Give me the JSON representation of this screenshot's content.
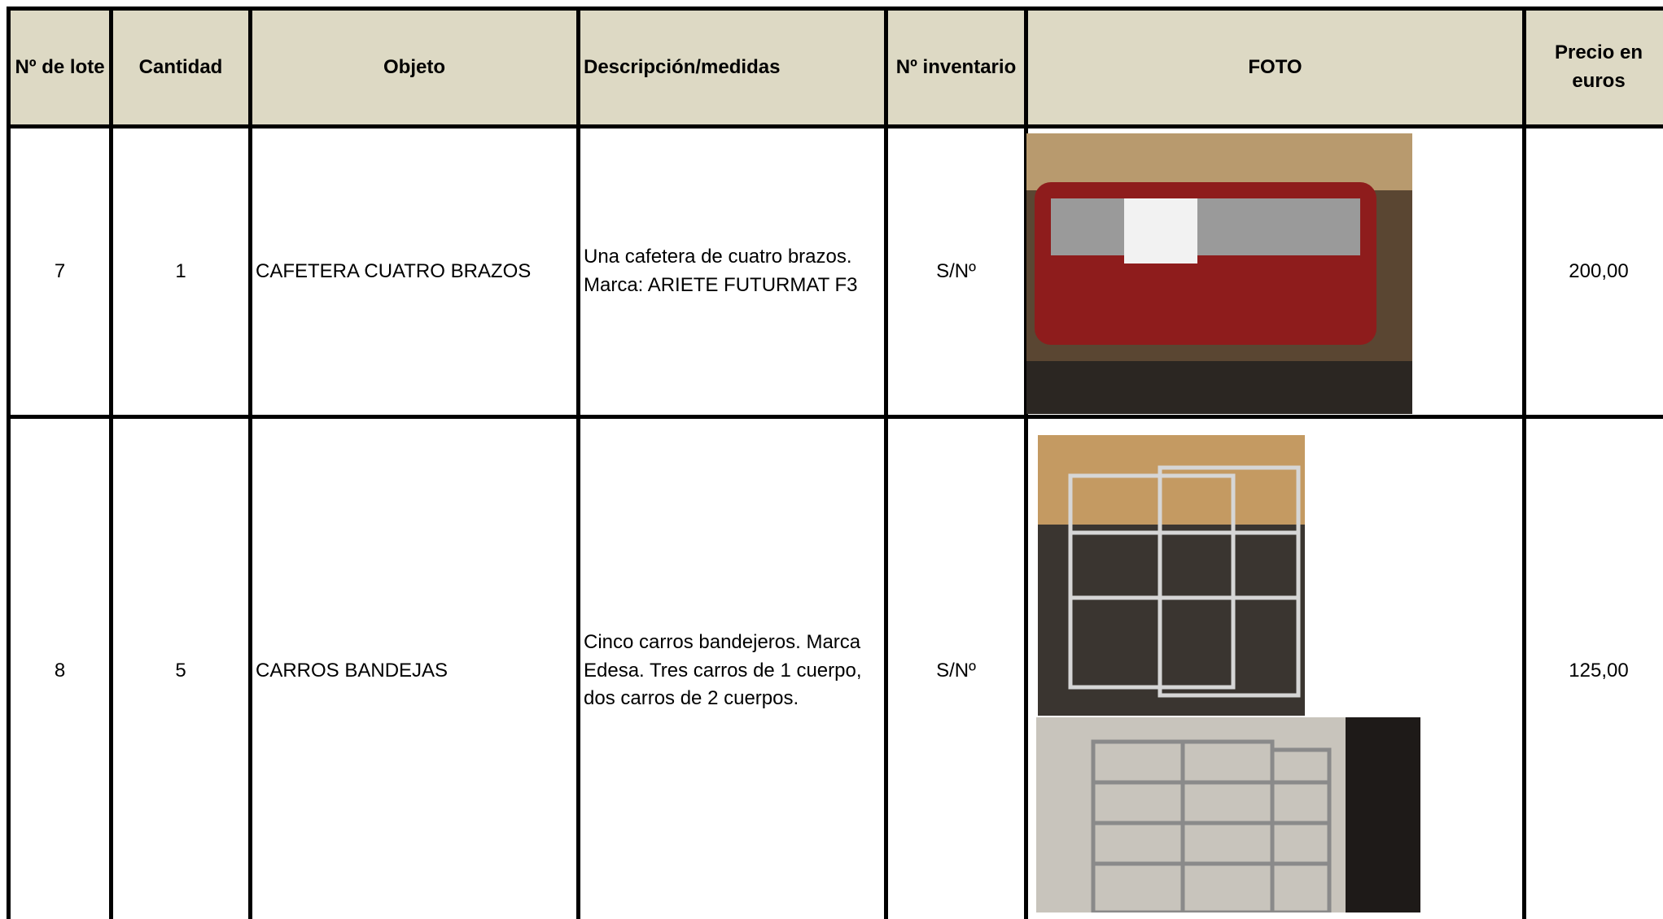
{
  "table": {
    "header": [
      "Nº de lote",
      "Cantidad",
      "Objeto",
      "Descripción/medidas",
      "Nº inventario",
      "FOTO",
      "Precio en euros"
    ],
    "rows": [
      [
        "7",
        "1",
        "CAFETERA CUATRO BRAZOS",
        "Una cafetera de cuatro brazos. Marca: ARIETE FUTURMAT F3",
        "S/Nº",
        "",
        "200,00"
      ],
      [
        "8",
        "5",
        "CARROS BANDEJAS",
        "Cinco carros bandejeros. Marca Edesa. Tres carros de 1 cuerpo, dos carros de 2 cuerpos.",
        "S/Nº",
        "",
        "125,00"
      ]
    ]
  }
}
